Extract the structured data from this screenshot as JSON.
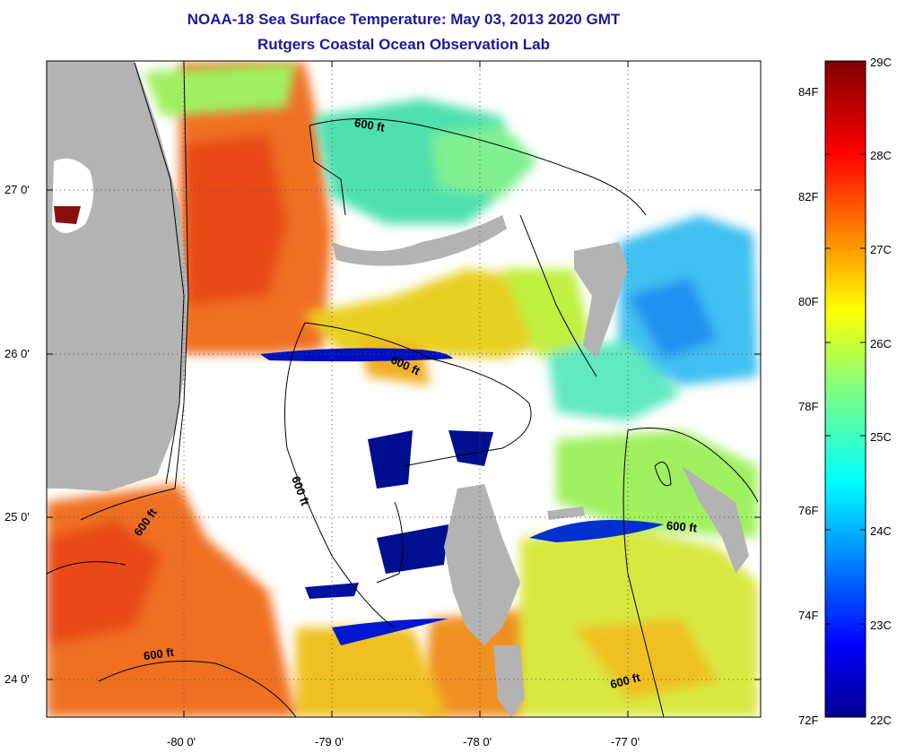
{
  "header": {
    "title": "NOAA-18 Sea Surface Temperature:  May 03, 2013 2020 GMT",
    "subtitle": "Rutgers Coastal Ocean Observation Lab"
  },
  "map": {
    "lon_ticks": [
      "-80 0'",
      "-79 0'",
      "-78 0'",
      "-77 0'"
    ],
    "lat_ticks": [
      "27 0'",
      "26 0'",
      "25 0'",
      "24 0'"
    ],
    "contour_labels": [
      "600 ft",
      "600 ft",
      "600 ft",
      "600 ft",
      "600 ft",
      "600 ft",
      "600 ft"
    ],
    "colors": {
      "land": "#b3b3b3",
      "cloud": "#ffffff",
      "frame": "#000000"
    }
  },
  "colorbar": {
    "fahrenheit_labels": [
      "84F",
      "82F",
      "80F",
      "78F",
      "76F",
      "74F",
      "72F"
    ],
    "celsius_labels": [
      "29C",
      "28C",
      "27C",
      "26C",
      "25C",
      "24C",
      "23C",
      "22C"
    ],
    "range_c": [
      22,
      29
    ],
    "range_f": [
      72,
      84
    ]
  }
}
